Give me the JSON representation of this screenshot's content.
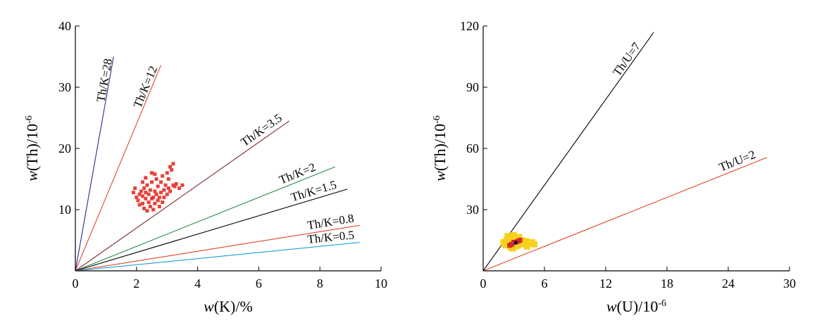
{
  "chart_data": [
    {
      "type": "scatter",
      "xlabel": {
        "italic": "w",
        "rest": "(K)/%"
      },
      "ylabel": {
        "italic": "w",
        "rest": "(Th)/10",
        "sup": "-6"
      },
      "xlim": [
        0,
        10
      ],
      "ylim": [
        0,
        40
      ],
      "xticks": [
        0,
        2,
        4,
        6,
        8,
        10
      ],
      "yticks": [
        10,
        20,
        30,
        40
      ],
      "xtick_labels": [
        "0",
        "2",
        "4",
        "6",
        "8",
        "10"
      ],
      "ytick_labels": [
        "10",
        "20",
        "30",
        "40"
      ],
      "ratio_lines": [
        {
          "label": "Th/K=28",
          "ratio": 28,
          "x_end": 1.25,
          "color": "#2b2b8c"
        },
        {
          "label": "Th/K=12",
          "ratio": 12,
          "x_end": 2.8,
          "color": "#e0442a"
        },
        {
          "label": "Th/K=3.5",
          "ratio": 3.5,
          "x_end": 7.0,
          "color": "#7a2a2a"
        },
        {
          "label": "Th/K=2",
          "ratio": 2,
          "x_end": 8.5,
          "color": "#2e8b4a"
        },
        {
          "label": "Th/K=1.5",
          "ratio": 1.5,
          "x_end": 8.9,
          "color": "#000000"
        },
        {
          "label": "Th/K=0.8",
          "ratio": 0.8,
          "x_end": 9.3,
          "color": "#e0442a"
        },
        {
          "label": "Th/K=0.5",
          "ratio": 0.5,
          "x_end": 9.3,
          "color": "#1aa0d8"
        }
      ],
      "points": [
        [
          2.0,
          12.0
        ],
        [
          2.05,
          11.5
        ],
        [
          2.1,
          12.5
        ],
        [
          2.1,
          10.8
        ],
        [
          2.15,
          13.0
        ],
        [
          2.2,
          11.0
        ],
        [
          2.2,
          12.2
        ],
        [
          2.25,
          10.2
        ],
        [
          2.25,
          13.5
        ],
        [
          2.3,
          11.8
        ],
        [
          2.3,
          12.8
        ],
        [
          2.35,
          9.8
        ],
        [
          2.35,
          14.0
        ],
        [
          2.4,
          11.2
        ],
        [
          2.4,
          12.5
        ],
        [
          2.45,
          10.5
        ],
        [
          2.45,
          13.2
        ],
        [
          2.5,
          11.8
        ],
        [
          2.5,
          14.5
        ],
        [
          2.55,
          12.0
        ],
        [
          2.55,
          10.0
        ],
        [
          2.6,
          13.0
        ],
        [
          2.6,
          11.0
        ],
        [
          2.65,
          12.5
        ],
        [
          2.65,
          15.0
        ],
        [
          2.7,
          11.5
        ],
        [
          2.7,
          13.8
        ],
        [
          2.75,
          12.0
        ],
        [
          2.75,
          10.5
        ],
        [
          2.8,
          14.5
        ],
        [
          2.8,
          12.8
        ],
        [
          2.85,
          11.2
        ],
        [
          2.85,
          15.5
        ],
        [
          2.9,
          13.2
        ],
        [
          2.9,
          12.0
        ],
        [
          2.95,
          14.0
        ],
        [
          3.0,
          16.0
        ],
        [
          3.0,
          12.5
        ],
        [
          3.05,
          13.5
        ],
        [
          3.05,
          15.0
        ],
        [
          3.1,
          17.0
        ],
        [
          3.1,
          13.0
        ],
        [
          3.15,
          16.5
        ],
        [
          3.2,
          14.0
        ],
        [
          3.2,
          17.5
        ],
        [
          3.25,
          13.8
        ],
        [
          3.3,
          14.2
        ],
        [
          3.4,
          13.5
        ],
        [
          3.5,
          14.0
        ],
        [
          2.2,
          14.5
        ],
        [
          2.3,
          15.2
        ],
        [
          2.5,
          16.0
        ],
        [
          2.6,
          15.8
        ],
        [
          1.9,
          12.8
        ],
        [
          1.95,
          13.5
        ]
      ]
    },
    {
      "type": "scatter",
      "xlabel": {
        "italic": "w",
        "rest": "(U)/10",
        "sup": "-6"
      },
      "ylabel": {
        "italic": "w",
        "rest": "(Th)/10",
        "sup": "-6"
      },
      "xlim": [
        0,
        30
      ],
      "ylim": [
        0,
        120
      ],
      "xticks": [
        0,
        6,
        12,
        18,
        24,
        30
      ],
      "yticks": [
        30,
        60,
        90,
        120
      ],
      "xtick_labels": [
        "0",
        "6",
        "12",
        "18",
        "24",
        "30"
      ],
      "ytick_labels": [
        "30",
        "60",
        "90",
        "120"
      ],
      "ratio_lines": [
        {
          "label": "Th/U=7",
          "ratio": 7,
          "x_end": 16.7,
          "color": "#000000"
        },
        {
          "label": "Th/U=2",
          "ratio": 2,
          "x_end": 27.8,
          "color": "#e0442a"
        }
      ],
      "points": [
        [
          2.0,
          14.0
        ],
        [
          2.2,
          12.5
        ],
        [
          2.3,
          15.0
        ],
        [
          2.5,
          13.0
        ],
        [
          2.6,
          16.0
        ],
        [
          2.7,
          11.5
        ],
        [
          2.8,
          14.5
        ],
        [
          3.0,
          13.0
        ],
        [
          3.1,
          15.5
        ],
        [
          3.2,
          12.0
        ],
        [
          3.3,
          14.0
        ],
        [
          3.5,
          16.5
        ],
        [
          3.6,
          13.5
        ],
        [
          3.8,
          15.0
        ],
        [
          4.0,
          13.0
        ],
        [
          4.2,
          14.5
        ],
        [
          4.5,
          13.5
        ],
        [
          4.8,
          14.0
        ],
        [
          5.0,
          13.0
        ],
        [
          2.4,
          17.0
        ],
        [
          3.0,
          17.5
        ],
        [
          3.4,
          12.5
        ],
        [
          2.9,
          11.0
        ],
        [
          4.3,
          12.0
        ]
      ],
      "dense_points": [
        [
          2.6,
          12.5
        ],
        [
          3.0,
          14.0
        ],
        [
          3.4,
          14.5
        ],
        [
          2.8,
          13.0
        ],
        [
          3.6,
          15.0
        ]
      ],
      "core_points": [
        [
          3.2,
          13.8
        ]
      ]
    }
  ]
}
